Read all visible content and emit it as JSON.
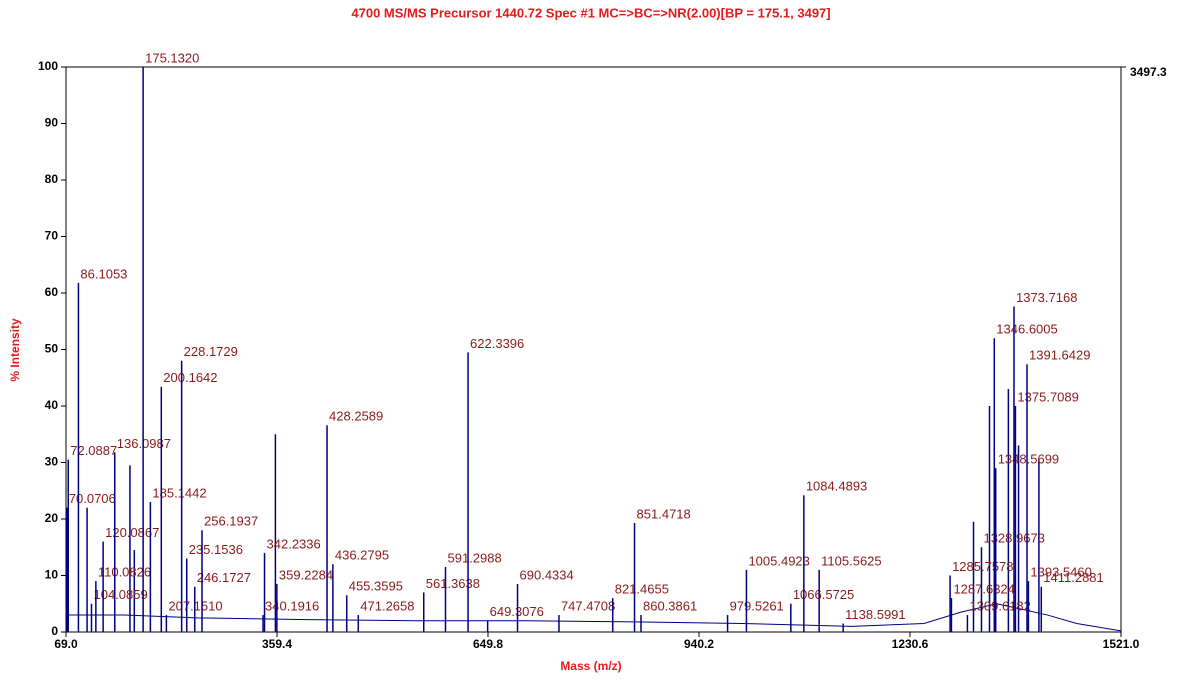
{
  "chart_data": {
    "type": "spectrum",
    "title": "4700 MS/MS Precursor 1440.72 Spec #1 MC=>BC=>NR(2.00)[BP = 175.1, 3497]",
    "xlabel": "Mass (m/z)",
    "ylabel": "% Intensity",
    "xlim": [
      69,
      1521
    ],
    "xticks": [
      {
        "value": 69,
        "label": "69.0"
      },
      359.4,
      649.8,
      940.2,
      1230.6,
      {
        "value": 1521,
        "label": "1521.0"
      }
    ],
    "ylim": [
      0,
      100
    ],
    "yticks": [
      0,
      10,
      20,
      30,
      40,
      50,
      60,
      70,
      80,
      90,
      100
    ],
    "y2lim": [
      0,
      3497.3
    ],
    "y2ticks": [
      3497.3
    ],
    "color": "#000080",
    "label_color": "#8b1a1a",
    "peaks": {
      "x": [
        70.0706,
        72.0887,
        86.1053,
        104.0859,
        110.0826,
        120.0867,
        136.0987,
        175.132,
        185.1442,
        200.1642,
        207.151,
        228.1729,
        235.1536,
        246.1727,
        256.1937,
        340.1916,
        342.2336,
        359.2284,
        428.2589,
        436.2795,
        455.3595,
        471.2658,
        561.3638,
        591.2988,
        622.3396,
        649.3076,
        690.4334,
        747.4708,
        821.4655,
        851.4718,
        860.3861,
        979.5261,
        1005.4923,
        1066.5725,
        1084.4893,
        1105.5625,
        1138.5991,
        1285.7578,
        1287.6324,
        1309.6182,
        1328.9673,
        1346.6005,
        1348.5699,
        1373.7168,
        1375.7089,
        1391.6429,
        1393.546,
        1411.2881
      ],
      "x_labels": [
        "70.0706",
        "72.0887",
        "86.1053",
        "104.0859",
        "110.0826",
        "120.0867",
        "136.0987",
        "175.1320",
        "185.1442",
        "200.1642",
        "207.1510",
        "228.1729",
        "235.1536",
        "246.1727",
        "256.1937",
        "340.1916",
        "342.2336",
        "359.2284",
        "428.2589",
        "436.2795",
        "455.3595",
        "471.2658",
        "561.3638",
        "591.2988",
        "622.3396",
        "649.3076",
        "690.4334",
        "747.4708",
        "821.4655",
        "851.4718",
        "860.3861",
        "979.5261",
        "1005.4923",
        "1066.5725",
        "1084.4893",
        "1105.5625",
        "1138.5991",
        "1285.7578",
        "1287.6324",
        "1309.6182",
        "1328.9673",
        "1346.6005",
        "1348.5699",
        "1373.7168",
        "1375.7089",
        "1391.6429",
        "1393.5460",
        "1411.2881"
      ],
      "values": [
        22,
        30.5,
        61.8,
        5,
        9,
        16,
        31.8,
        100,
        23,
        43.4,
        3,
        48,
        13,
        8,
        18,
        3,
        14,
        8.5,
        36.6,
        12,
        6.5,
        3,
        7,
        11.5,
        49.5,
        2,
        8.5,
        3,
        6,
        19.3,
        3,
        3,
        11,
        5,
        24.2,
        11,
        1.5,
        10,
        6,
        3,
        15,
        52,
        29,
        57.6,
        40,
        47.4,
        9,
        8
      ]
    },
    "unlabeled_peaks": {
      "x": [
        98,
        157,
        163,
        357.2,
        1318,
        1340,
        1366,
        1380,
        1408
      ],
      "values": [
        22,
        29.5,
        14.5,
        35,
        19.5,
        40,
        43,
        33,
        30.5
      ]
    },
    "baseline": {
      "x": [
        69,
        150,
        250,
        400,
        550,
        700,
        850,
        1000,
        1150,
        1250,
        1300,
        1350,
        1420,
        1460,
        1521
      ],
      "values": [
        3,
        3,
        2.5,
        2.2,
        2,
        2,
        1.8,
        1.5,
        1,
        1.5,
        3.5,
        5,
        3,
        1.5,
        0.2
      ]
    }
  }
}
